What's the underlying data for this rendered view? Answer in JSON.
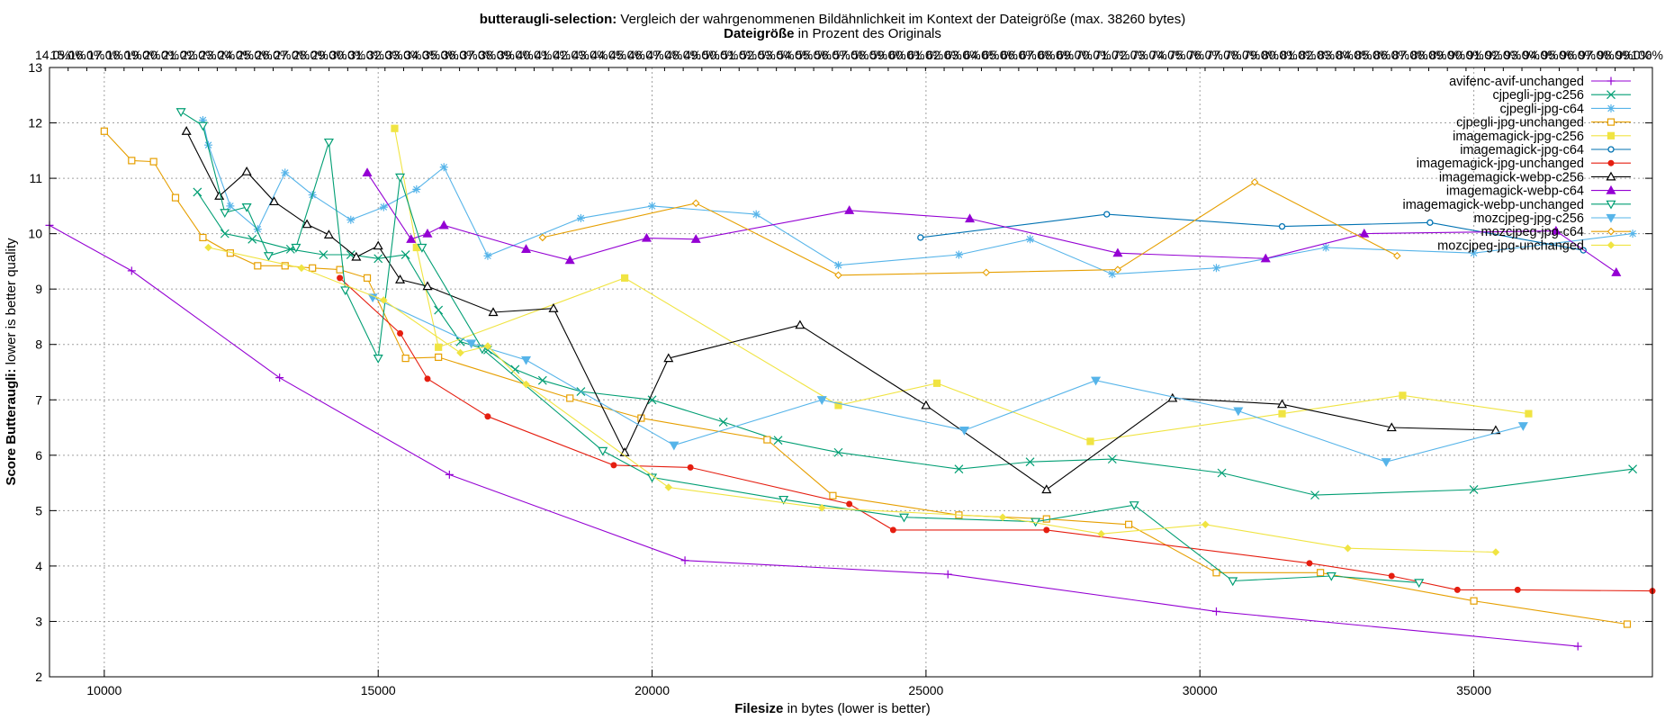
{
  "chart_data": {
    "type": "line",
    "title": {
      "bold": "butteraugli-selection:",
      "rest": " Vergleich der wahrgenommenen Bildähnlichkeit im Kontext der Dateigröße (max. 38260 bytes)"
    },
    "x2label": {
      "bold": "Dateigröße",
      "rest": " in Prozent des Originals"
    },
    "xlabel": {
      "bold": "Filesize",
      "rest": " in bytes (lower is better)"
    },
    "ylabel": {
      "bold": "Score Butteraugli:",
      "rest": " lower is better quality"
    },
    "xlim": [
      9000,
      38260
    ],
    "ylim": [
      2,
      13
    ],
    "x_ticks": [
      10000,
      15000,
      20000,
      25000,
      30000,
      35000
    ],
    "y_ticks": [
      2,
      3,
      4,
      5,
      6,
      7,
      8,
      9,
      10,
      11,
      12,
      13
    ],
    "x2_first": 14,
    "x2_last": 100,
    "x2_first_label": "14.0%",
    "x2_last_label": "100%",
    "grid": true,
    "legend_position": "top-right",
    "series": [
      {
        "name": "avifenc-avif-unchanged",
        "color": "#9400d3",
        "marker": "plus",
        "x": [
          9000,
          10500,
          13200,
          16300,
          20600,
          25400,
          30300,
          36900
        ],
        "y": [
          10.15,
          9.33,
          7.4,
          5.65,
          4.1,
          3.85,
          3.18,
          2.55
        ]
      },
      {
        "name": "cjpegli-jpg-c256",
        "color": "#009e73",
        "marker": "cross",
        "x": [
          11700,
          12200,
          12700,
          13400,
          14000,
          14500,
          15000,
          15500,
          16100,
          16500,
          17000,
          17500,
          18000,
          18700,
          20000,
          21300,
          22300,
          23400,
          25600,
          26900,
          28400,
          30400,
          32100,
          35000,
          37900
        ],
        "y": [
          10.75,
          10.0,
          9.9,
          9.72,
          9.62,
          9.62,
          9.55,
          9.62,
          8.62,
          8.05,
          7.9,
          7.55,
          7.35,
          7.15,
          7.0,
          6.6,
          6.27,
          6.05,
          5.75,
          5.88,
          5.93,
          5.68,
          5.28,
          5.38,
          5.75
        ]
      },
      {
        "name": "cjpegli-jpg-c64",
        "color": "#56b4e9",
        "marker": "star",
        "x": [
          11800,
          11900,
          12300,
          12800,
          13300,
          13800,
          14500,
          15100,
          15700,
          16200,
          17000,
          18700,
          20000,
          21900,
          23400,
          25600,
          26900,
          28400,
          30300,
          32300,
          35000,
          37900
        ],
        "y": [
          12.05,
          11.6,
          10.5,
          10.08,
          11.1,
          10.7,
          10.25,
          10.48,
          10.8,
          11.2,
          9.6,
          10.28,
          10.5,
          10.35,
          9.43,
          9.62,
          9.9,
          9.27,
          9.38,
          9.75,
          9.65,
          10.0
        ]
      },
      {
        "name": "cjpegli-jpg-unchanged",
        "color": "#e69f00",
        "marker": "square",
        "x": [
          10000,
          10500,
          10900,
          11300,
          11800,
          12300,
          12800,
          13300,
          13800,
          14300,
          14800,
          15500,
          16100,
          18500,
          19800,
          22100,
          23300,
          25600,
          27200,
          28700,
          30300,
          32200,
          35000,
          37800
        ],
        "y": [
          11.85,
          11.32,
          11.3,
          10.65,
          9.93,
          9.65,
          9.42,
          9.42,
          9.38,
          9.35,
          9.2,
          7.75,
          7.77,
          7.03,
          6.67,
          6.28,
          5.27,
          4.92,
          4.85,
          4.75,
          3.88,
          3.88,
          3.37,
          2.95
        ]
      },
      {
        "name": "imagemagick-jpg-c256",
        "color": "#f0e442",
        "marker": "square",
        "x": [
          15300,
          15700,
          16100,
          19500,
          23400,
          25200,
          28000,
          31500,
          33700,
          36000
        ],
        "y": [
          11.9,
          9.75,
          7.95,
          9.2,
          6.9,
          7.3,
          6.25,
          6.75,
          7.08,
          6.75
        ]
      },
      {
        "name": "imagemagick-jpg-c64",
        "color": "#0072b2",
        "marker": "circle",
        "x": [
          24900,
          28300,
          31500,
          34200,
          37000
        ],
        "y": [
          9.93,
          10.35,
          10.13,
          10.2,
          9.7
        ]
      },
      {
        "name": "imagemagick-jpg-unchanged",
        "color": "#e51e10",
        "marker": "dot",
        "x": [
          14300,
          15400,
          15900,
          17000,
          19300,
          20700,
          23600,
          24400,
          27200,
          32000,
          33500,
          34700,
          35800,
          38260
        ],
        "y": [
          9.2,
          8.2,
          7.38,
          6.7,
          5.82,
          5.78,
          5.12,
          4.65,
          4.65,
          4.05,
          3.82,
          3.57,
          3.57,
          3.55
        ]
      },
      {
        "name": "imagemagick-webp-c256",
        "color": "#000000",
        "marker": "triangle",
        "x": [
          11500,
          12100,
          12600,
          13100,
          13700,
          14100,
          14600,
          15000,
          15400,
          15900,
          17100,
          18200,
          19500,
          20300,
          22700,
          25000,
          27200,
          29500,
          31500,
          33500,
          35400
        ],
        "y": [
          11.85,
          10.68,
          11.12,
          10.58,
          10.17,
          9.98,
          9.58,
          9.78,
          9.17,
          9.05,
          8.58,
          8.65,
          6.05,
          7.75,
          8.35,
          6.9,
          5.38,
          7.03,
          6.92,
          6.5,
          6.45
        ]
      },
      {
        "name": "imagemagick-webp-c64",
        "color": "#9400d3",
        "marker": "triangle-filled",
        "x": [
          14800,
          15600,
          15900,
          16200,
          17700,
          18500,
          19900,
          20800,
          23600,
          25800,
          28500,
          31200,
          33000,
          36500,
          37600
        ],
        "y": [
          11.1,
          9.9,
          10.0,
          10.15,
          9.72,
          9.52,
          9.92,
          9.9,
          10.42,
          10.27,
          9.65,
          9.55,
          10.0,
          10.05,
          9.3
        ]
      },
      {
        "name": "imagemagick-webp-unchanged",
        "color": "#009e73",
        "marker": "triangle-down",
        "x": [
          11400,
          11800,
          12200,
          12600,
          13000,
          13500,
          14100,
          14400,
          15000,
          15400,
          15800,
          16900,
          19100,
          20000,
          22400,
          24600,
          27000,
          28800,
          30600,
          32400,
          34000
        ],
        "y": [
          12.2,
          11.95,
          10.38,
          10.48,
          9.6,
          9.75,
          11.65,
          8.98,
          7.75,
          11.02,
          9.75,
          7.92,
          6.08,
          5.6,
          5.2,
          4.88,
          4.8,
          5.1,
          3.73,
          3.82,
          3.7
        ]
      },
      {
        "name": "mozcjpeg-jpg-c256",
        "color": "#56b4e9",
        "marker": "triangle-down-filled",
        "x": [
          14900,
          16700,
          17700,
          20400,
          23100,
          25700,
          28100,
          30700,
          33400,
          35900
        ],
        "y": [
          8.85,
          8.02,
          7.72,
          6.18,
          7.0,
          6.45,
          7.35,
          6.8,
          5.88,
          6.53
        ]
      },
      {
        "name": "mozcjpeg-jpg-c64",
        "color": "#e69f00",
        "marker": "diamond",
        "x": [
          18000,
          20800,
          23400,
          26100,
          28500,
          31000,
          33600
        ],
        "y": [
          9.93,
          10.55,
          9.25,
          9.3,
          9.35,
          10.93,
          9.6
        ]
      },
      {
        "name": "mozcjpeg-jpg-unchanged",
        "color": "#f0e442",
        "marker": "diamond",
        "x": [
          11900,
          13600,
          15100,
          16500,
          17000,
          17700,
          20300,
          23100,
          26400,
          28200,
          30100,
          32700,
          35400
        ],
        "y": [
          9.75,
          9.38,
          8.8,
          7.85,
          7.97,
          7.28,
          5.42,
          5.05,
          4.88,
          4.58,
          4.75,
          4.32,
          4.25
        ]
      }
    ]
  }
}
